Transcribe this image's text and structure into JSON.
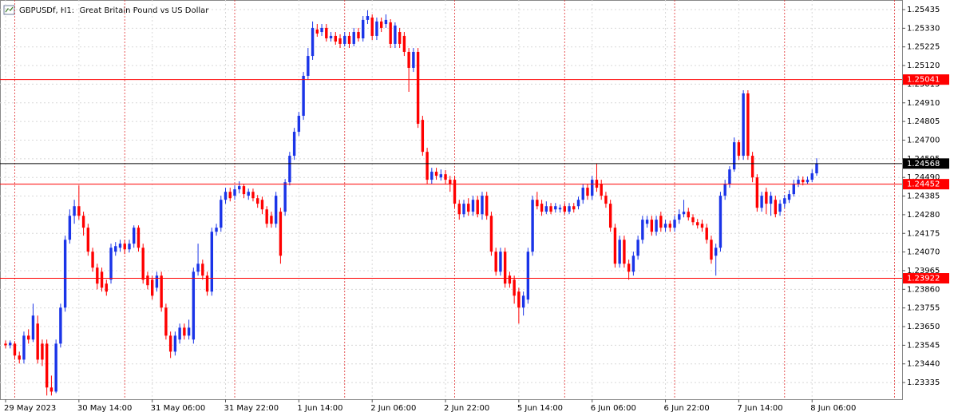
{
  "chart_data": {
    "type": "candlestick",
    "title": "GBPUSDf, H1:  Great Britain Pound vs US Dollar",
    "up_color": "#1a34e8",
    "down_color": "#ff0000",
    "grid": true,
    "ylim": [
      1.23241,
      1.25489
    ],
    "yticks": [
      1.25435,
      {
        "value": 1.2533,
        "label": "1.25330"
      },
      1.25225,
      {
        "value": 1.2512,
        "label": "1.25120"
      },
      1.25015,
      {
        "value": 1.2491,
        "label": "1.24910"
      },
      1.24805,
      {
        "value": 1.247,
        "label": "1.24700"
      },
      1.24595,
      {
        "value": 1.2449,
        "label": "1.24490"
      },
      1.24385,
      {
        "value": 1.2428,
        "label": "1.24280"
      },
      1.24175,
      {
        "value": 1.2407,
        "label": "1.24070"
      },
      1.23965,
      {
        "value": 1.2386,
        "label": "1.23860"
      },
      1.23755,
      {
        "value": 1.2365,
        "label": "1.23650"
      },
      1.23545,
      {
        "value": 1.2344,
        "label": "1.23440"
      },
      1.23335
    ],
    "levels": [
      {
        "value": 1.25041,
        "color": "#ff0000"
      },
      {
        "value": 1.24452,
        "color": "#ff0000"
      },
      {
        "value": 1.23922,
        "color": "#ff0000"
      }
    ],
    "last_price": {
      "value": 1.24568,
      "color": "#000000"
    },
    "x": [
      "29 May 2023",
      null,
      null,
      null,
      null,
      null,
      null,
      null,
      null,
      null,
      null,
      null,
      null,
      null,
      null,
      null,
      "30 May 14:00",
      null,
      null,
      null,
      null,
      null,
      null,
      null,
      null,
      null,
      null,
      null,
      null,
      null,
      null,
      null,
      "31 May 06:00",
      null,
      null,
      null,
      null,
      null,
      null,
      null,
      null,
      null,
      null,
      null,
      null,
      null,
      null,
      null,
      "31 May 22:00",
      null,
      null,
      null,
      null,
      null,
      null,
      null,
      null,
      null,
      null,
      null,
      null,
      null,
      null,
      null,
      "1 Jun 14:00",
      null,
      null,
      null,
      null,
      null,
      null,
      null,
      null,
      null,
      null,
      null,
      null,
      null,
      null,
      null,
      "2 Jun 06:00",
      null,
      null,
      null,
      null,
      null,
      null,
      null,
      null,
      null,
      null,
      null,
      null,
      null,
      null,
      null,
      "2 Jun 22:00",
      null,
      null,
      null,
      null,
      null,
      null,
      null,
      null,
      null,
      null,
      null,
      null,
      null,
      null,
      null,
      "5 Jun 14:00",
      null,
      null,
      null,
      null,
      null,
      null,
      null,
      null,
      null,
      null,
      null,
      null,
      null,
      null,
      null,
      "6 Jun 06:00",
      null,
      null,
      null,
      null,
      null,
      null,
      null,
      null,
      null,
      null,
      null,
      null,
      null,
      null,
      null,
      "6 Jun 22:00",
      null,
      null,
      null,
      null,
      null,
      null,
      null,
      null,
      null,
      null,
      null,
      null,
      null,
      null,
      null,
      "7 Jun 14:00",
      null,
      null,
      null,
      null,
      null,
      null,
      null,
      null,
      null,
      null,
      null,
      null,
      null,
      null,
      null,
      "8 Jun 06:00",
      null
    ],
    "open": [
      1.23554,
      1.23545,
      1.23554,
      1.23487,
      1.23464,
      1.23599,
      1.23577,
      1.23667,
      1.23554,
      1.23554,
      1.23307,
      1.23284,
      1.23554,
      1.23757,
      1.24139,
      1.24274,
      1.24328,
      1.24274,
      1.24207,
      1.24072,
      1.23982,
      1.23959,
      1.23892,
      1.23914,
      1.24072,
      1.24094,
      1.24117,
      1.24085,
      1.24117,
      1.24207,
      1.24094,
      1.23937,
      1.23914,
      1.23869,
      1.23937,
      1.23757,
      1.23599,
      1.23509,
      1.23577,
      1.23644,
      1.23599,
      1.23577,
      1.23959,
      1.24004,
      1.23937,
      1.23847,
      1.24184,
      1.24207,
      1.24364,
      1.24409,
      1.24387,
      1.24423,
      1.24441,
      1.24387,
      1.24409,
      1.24373,
      1.24364,
      1.2431,
      1.24274,
      1.24229,
      1.24297,
      1.24297,
      1.24463,
      1.24612,
      1.24747,
      1.24837,
      1.25062,
      1.25174,
      1.25323,
      1.25309,
      1.25332,
      1.25273,
      1.25287,
      1.25273,
      1.25242,
      1.25287,
      1.25242,
      1.25309,
      1.25273,
      1.25377,
      1.2539,
      1.25287,
      1.25368,
      1.25354,
      1.25363,
      1.25242,
      1.25309,
      1.25287,
      1.25197,
      1.25107,
      1.25197,
      1.24814,
      1.24634,
      1.24477,
      1.24522,
      1.2449,
      1.24508,
      1.24477,
      1.24477,
      1.24342,
      1.24283,
      1.24342,
      1.24297,
      1.24364,
      1.24283,
      1.24387,
      1.24274,
      1.24072,
      1.23959,
      1.24072,
      1.23937,
      1.23914,
      1.23847,
      1.23757,
      1.23802,
      1.24072,
      1.24364,
      1.24342,
      1.24297,
      1.24328,
      1.2431,
      1.2431,
      1.24328,
      1.24297,
      1.24328,
      1.24328,
      1.24364,
      1.24432,
      1.24387,
      1.24477,
      1.24454,
      1.24387,
      1.24342,
      1.24207,
      1.24004,
      1.24139,
      1.24004,
      1.23959,
      1.24049,
      1.24139,
      1.24229,
      1.24252,
      1.24184,
      1.24274,
      1.24207,
      1.24229,
      1.24207,
      1.24252,
      1.24283,
      1.24297,
      1.24265,
      1.24238,
      1.24229,
      1.24207,
      1.24139,
      1.24049,
      1.24094,
      1.24387,
      1.24454,
      1.24535,
      1.24688,
      1.24612,
      1.24963,
      1.24612,
      1.2449,
      1.24319,
      1.24409,
      1.24342,
      1.24364,
      1.24297,
      1.24342,
      1.24364,
      1.24396,
      1.24454,
      1.24477,
      1.24463,
      1.24477,
      1.24513
    ],
    "high": [
      1.23572,
      1.23572,
      1.23568,
      1.23509,
      1.23622,
      1.23635,
      1.23779,
      1.23712,
      1.23577,
      1.23577,
      1.23374,
      1.23577,
      1.23779,
      1.24162,
      1.2431,
      1.24364,
      1.24445,
      1.24297,
      1.24229,
      1.24094,
      1.24004,
      1.23982,
      1.23914,
      1.24117,
      1.24126,
      1.24139,
      1.24139,
      1.24139,
      1.2422,
      1.2422,
      1.24117,
      1.23959,
      1.23937,
      1.23959,
      1.23959,
      1.23779,
      1.23622,
      1.23622,
      1.23667,
      1.23667,
      1.23689,
      1.23982,
      1.24117,
      1.24027,
      1.23959,
      1.24207,
      1.24229,
      1.24387,
      1.24432,
      1.24432,
      1.24445,
      1.24468,
      1.24454,
      1.24427,
      1.24427,
      1.24391,
      1.24382,
      1.24328,
      1.24297,
      1.24409,
      1.24319,
      1.24481,
      1.24634,
      1.24769,
      1.24859,
      1.25084,
      1.25219,
      1.25368,
      1.25354,
      1.25354,
      1.25354,
      1.25309,
      1.25309,
      1.25296,
      1.25309,
      1.25309,
      1.25332,
      1.25332,
      1.25399,
      1.25431,
      1.25408,
      1.2539,
      1.2539,
      1.25408,
      1.25381,
      1.25363,
      1.25332,
      1.25309,
      1.25219,
      1.25219,
      1.25219,
      1.24837,
      1.24657,
      1.24544,
      1.24544,
      1.24535,
      1.24531,
      1.24499,
      1.24499,
      1.24364,
      1.24364,
      1.24373,
      1.24387,
      1.24387,
      1.24409,
      1.24409,
      1.24297,
      1.24094,
      1.24094,
      1.24094,
      1.23959,
      1.23937,
      1.23869,
      1.23847,
      1.24094,
      1.24387,
      1.24409,
      1.24364,
      1.24355,
      1.24346,
      1.24346,
      1.24337,
      1.24346,
      1.24346,
      1.24346,
      1.24382,
      1.24454,
      1.24454,
      1.24499,
      1.24567,
      1.24477,
      1.24409,
      1.24364,
      1.24229,
      1.24162,
      1.24162,
      1.24027,
      1.24072,
      1.24162,
      1.24274,
      1.24274,
      1.24274,
      1.24274,
      1.24297,
      1.24252,
      1.24247,
      1.24274,
      1.2431,
      1.24364,
      1.24319,
      1.24283,
      1.24256,
      1.24252,
      1.24229,
      1.24162,
      1.24117,
      1.24409,
      1.24477,
      1.24553,
      1.24715,
      1.24702,
      1.24981,
      1.24981,
      1.24634,
      1.24508,
      1.24409,
      1.24432,
      1.24409,
      1.24387,
      1.24364,
      1.24391,
      1.24418,
      1.24477,
      1.24499,
      1.24495,
      1.24495,
      1.24535,
      1.24598
    ],
    "low": [
      1.23527,
      1.23527,
      1.23464,
      1.23442,
      1.23442,
      1.23554,
      1.23563,
      1.23442,
      1.23428,
      1.23262,
      1.23262,
      1.23275,
      1.23532,
      1.23734,
      1.24117,
      1.24229,
      1.24252,
      1.24162,
      1.24049,
      1.23959,
      1.2386,
      1.23847,
      1.23824,
      1.23892,
      1.24049,
      1.24072,
      1.24058,
      1.24067,
      1.24094,
      1.24072,
      1.23892,
      1.2386,
      1.23802,
      1.23847,
      1.23734,
      1.23577,
      1.23473,
      1.23487,
      1.23554,
      1.23577,
      1.23577,
      1.23554,
      1.23937,
      1.23914,
      1.23824,
      1.23824,
      1.24162,
      1.24184,
      1.24342,
      1.24355,
      1.24364,
      1.244,
      1.24373,
      1.24364,
      1.24355,
      1.24319,
      1.24283,
      1.24207,
      1.24207,
      1.24207,
      1.24004,
      1.24274,
      1.24445,
      1.24589,
      1.24724,
      1.24814,
      1.25039,
      1.25152,
      1.25282,
      1.25287,
      1.25255,
      1.25255,
      1.25237,
      1.25219,
      1.25228,
      1.25219,
      1.25228,
      1.25255,
      1.25255,
      1.25354,
      1.25264,
      1.25264,
      1.25309,
      1.25332,
      1.25219,
      1.25219,
      1.25219,
      1.25174,
      1.24972,
      1.25084,
      1.24769,
      1.24612,
      1.24454,
      1.24454,
      1.24477,
      1.24472,
      1.24454,
      1.24409,
      1.24319,
      1.24252,
      1.24265,
      1.24274,
      1.24274,
      1.24265,
      1.24252,
      1.24252,
      1.24049,
      1.23937,
      1.23937,
      1.23869,
      1.23869,
      1.23779,
      1.23667,
      1.23712,
      1.23779,
      1.24049,
      1.2431,
      1.24274,
      1.24283,
      1.24283,
      1.24292,
      1.24292,
      1.24283,
      1.24283,
      1.24292,
      1.2431,
      1.24342,
      1.24364,
      1.24364,
      1.24409,
      1.24364,
      1.24319,
      1.24184,
      1.23982,
      1.23982,
      1.23982,
      1.23914,
      1.23937,
      1.24027,
      1.24117,
      1.24207,
      1.24162,
      1.24162,
      1.24184,
      1.24184,
      1.24184,
      1.24184,
      1.24229,
      1.24265,
      1.24247,
      1.2422,
      1.24202,
      1.24184,
      1.24117,
      1.24004,
      1.23937,
      1.24072,
      1.24364,
      1.24432,
      1.24522,
      1.24589,
      1.24589,
      1.24589,
      1.24463,
      1.24297,
      1.24297,
      1.24283,
      1.24274,
      1.24265,
      1.24274,
      1.24319,
      1.24346,
      1.24382,
      1.24436,
      1.24445,
      1.24454,
      1.24463,
      1.24499
    ],
    "close": [
      1.23545,
      1.23559,
      1.23487,
      1.23464,
      1.23599,
      1.23577,
      1.23712,
      1.23464,
      1.23464,
      1.23307,
      1.23284,
      1.23554,
      1.23757,
      1.24139,
      1.24274,
      1.24328,
      1.24274,
      1.24207,
      1.24072,
      1.23982,
      1.23892,
      1.23869,
      1.23847,
      1.24094,
      1.24103,
      1.24117,
      1.24085,
      1.24117,
      1.24207,
      1.24094,
      1.23914,
      1.23883,
      1.23824,
      1.23937,
      1.23757,
      1.23599,
      1.23509,
      1.23599,
      1.23644,
      1.23599,
      1.23644,
      1.23959,
      1.24004,
      1.23937,
      1.23847,
      1.24184,
      1.24207,
      1.24364,
      1.24409,
      1.24373,
      1.24423,
      1.24441,
      1.24396,
      1.24409,
      1.24373,
      1.24342,
      1.2431,
      1.24229,
      1.24229,
      1.24387,
      1.24049,
      1.24463,
      1.24612,
      1.24747,
      1.24837,
      1.25062,
      1.25174,
      1.25332,
      1.253,
      1.25332,
      1.25273,
      1.25287,
      1.25255,
      1.25242,
      1.25287,
      1.25242,
      1.25309,
      1.25273,
      1.25377,
      1.25399,
      1.25287,
      1.25368,
      1.25332,
      1.25377,
      1.25242,
      1.25345,
      1.25242,
      1.25197,
      1.25107,
      1.25197,
      1.24792,
      1.24634,
      1.24477,
      1.24522,
      1.24499,
      1.24508,
      1.24477,
      1.24454,
      1.24342,
      1.24283,
      1.24342,
      1.24297,
      1.24364,
      1.24283,
      1.24387,
      1.24274,
      1.24072,
      1.23959,
      1.24072,
      1.23892,
      1.23892,
      1.23824,
      1.23757,
      1.23824,
      1.24072,
      1.24364,
      1.24328,
      1.24297,
      1.24328,
      1.24297,
      1.24328,
      1.24319,
      1.24297,
      1.24328,
      1.2431,
      1.24364,
      1.24432,
      1.24387,
      1.24477,
      1.24432,
      1.24387,
      1.24342,
      1.24207,
      1.24004,
      1.24139,
      1.24004,
      1.23959,
      1.24049,
      1.24139,
      1.24252,
      1.24252,
      1.24184,
      1.24252,
      1.24207,
      1.24229,
      1.24207,
      1.24252,
      1.24283,
      1.24297,
      1.24265,
      1.24238,
      1.2422,
      1.24207,
      1.24139,
      1.24027,
      1.24094,
      1.24387,
      1.24454,
      1.24535,
      1.24688,
      1.24612,
      1.24963,
      1.24612,
      1.2449,
      1.24319,
      1.24387,
      1.24342,
      1.24387,
      1.24283,
      1.24342,
      1.24373,
      1.24396,
      1.24454,
      1.24477,
      1.24463,
      1.24477,
      1.24513,
      1.24568
    ]
  }
}
